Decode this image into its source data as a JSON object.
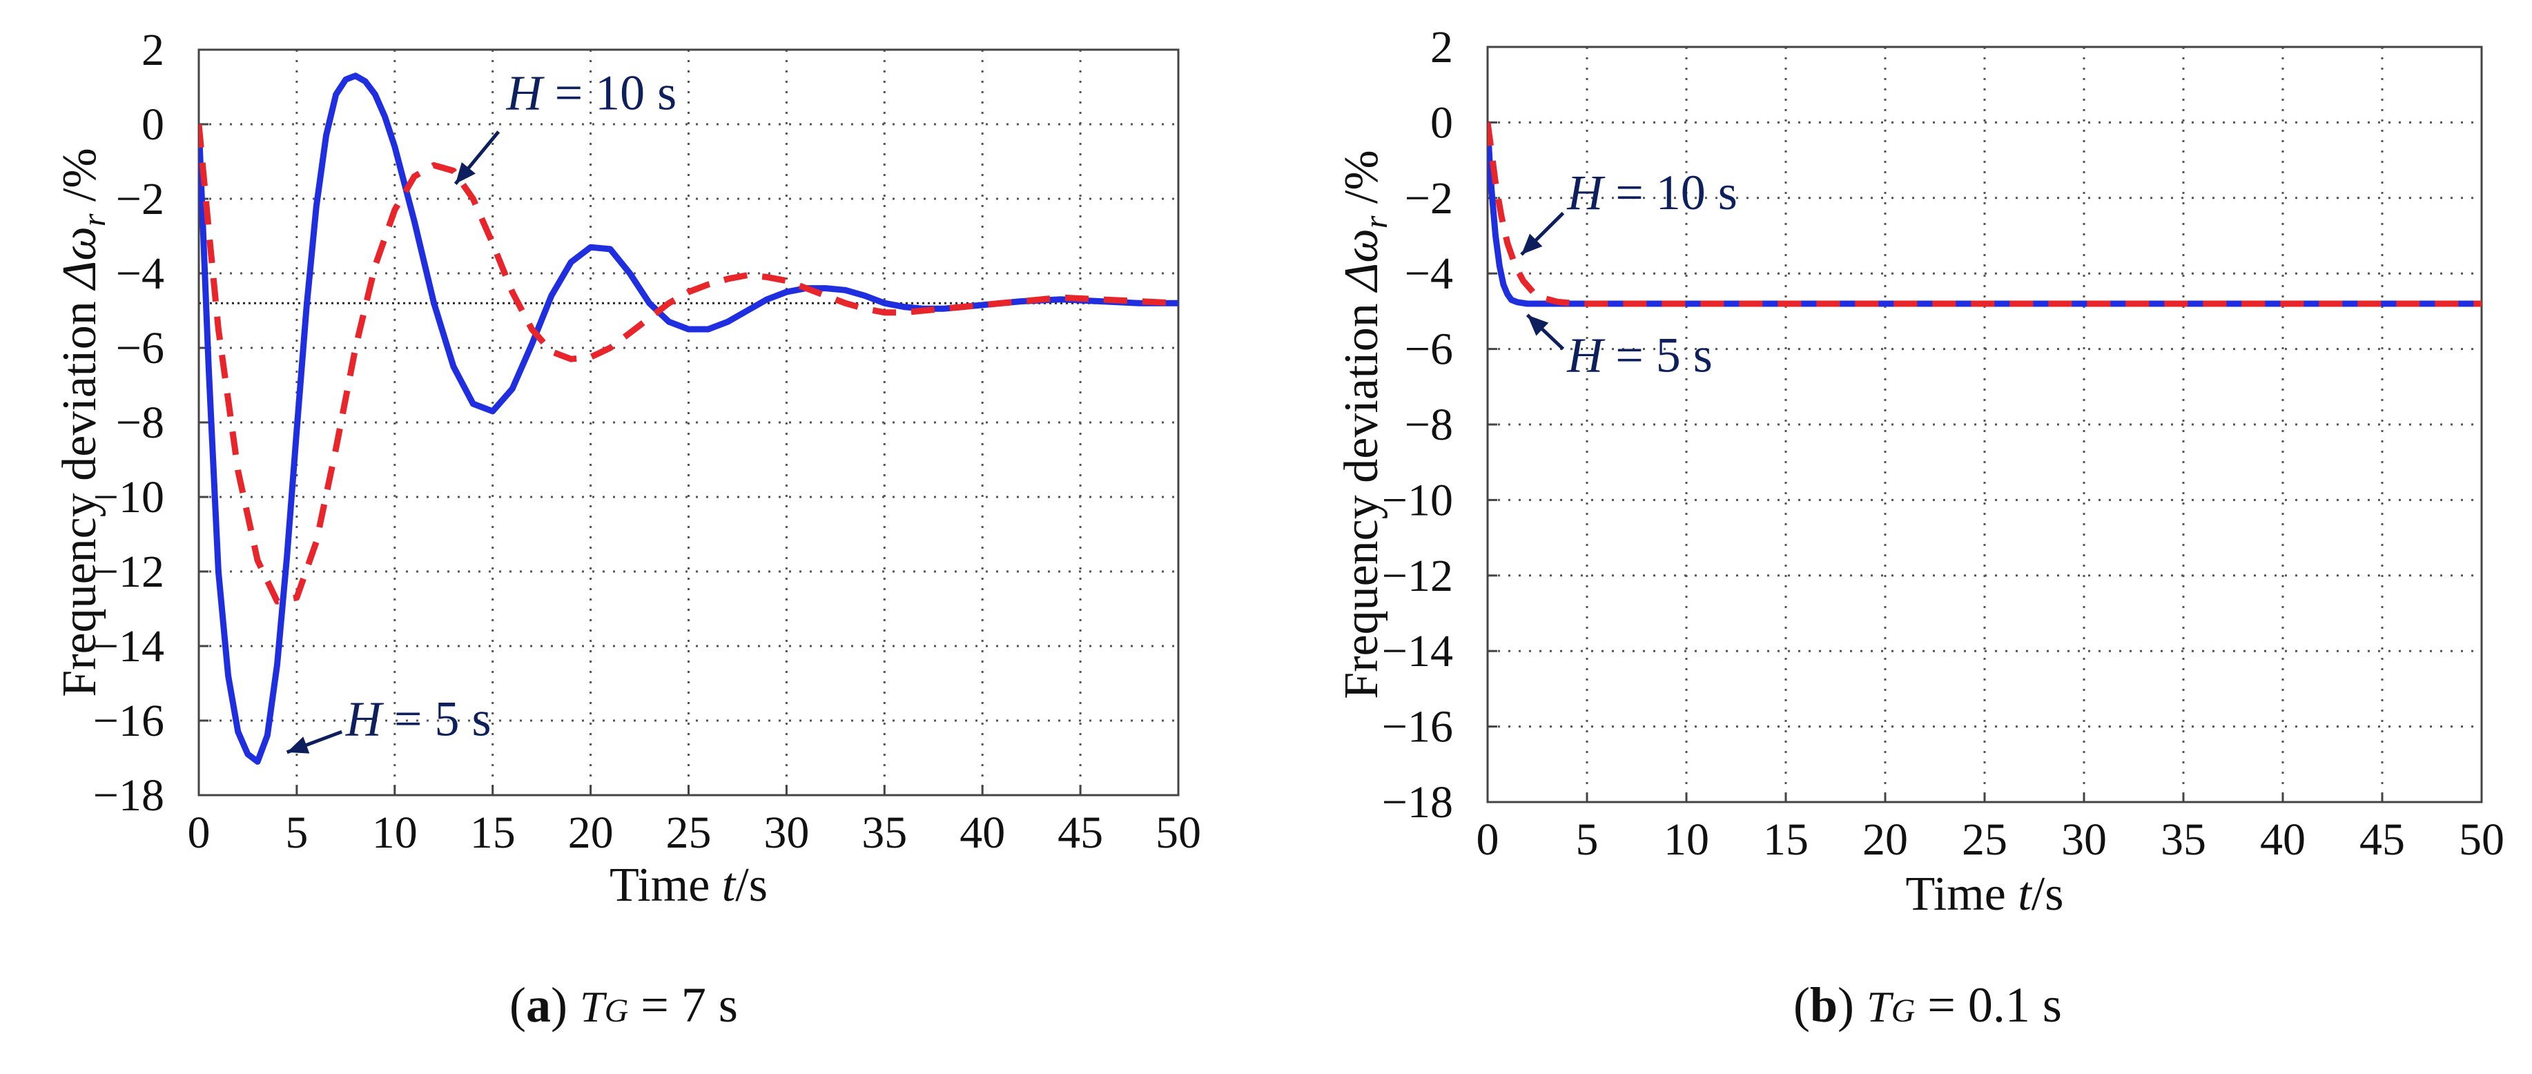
{
  "chart_data": [
    {
      "type": "line",
      "panel_label": "a",
      "caption": {
        "letter": "a",
        "var": "T",
        "sub": "G",
        "text": " = 7 s"
      },
      "xlabel": {
        "pre": "Time ",
        "var": "t",
        "post": "/s"
      },
      "ylabel": {
        "pre": "Frequency deviation ",
        "var": "Δω",
        "sub": "r",
        "post": " /%"
      },
      "xlim": [
        0,
        50
      ],
      "ylim": [
        -18,
        2
      ],
      "xticks": [
        0,
        5,
        10,
        15,
        20,
        25,
        30,
        35,
        40,
        45,
        50
      ],
      "yticks": [
        2,
        0,
        -2,
        -4,
        -6,
        -8,
        -10,
        -12,
        -14,
        -16,
        -18
      ],
      "grid": true,
      "reference_line": -4.8,
      "series": [
        {
          "name": "H = 5 s",
          "color": "#1f2fe0",
          "dash": "solid",
          "x": [
            0,
            0.5,
            1,
            1.5,
            2,
            2.5,
            3,
            3.5,
            4,
            4.5,
            5,
            5.5,
            6,
            6.5,
            7,
            7.5,
            8,
            8.5,
            9,
            9.5,
            10,
            11,
            12,
            13,
            14,
            15,
            16,
            17,
            18,
            19,
            20,
            21,
            22,
            23,
            24,
            25,
            26,
            27,
            28,
            29,
            30,
            31,
            32,
            33,
            34,
            35,
            36,
            37,
            38,
            39,
            40,
            42,
            44,
            46,
            48,
            50
          ],
          "y": [
            0,
            -6.5,
            -12,
            -14.8,
            -16.3,
            -16.9,
            -17.1,
            -16.4,
            -14.5,
            -11.6,
            -8.2,
            -4.9,
            -2.2,
            -0.3,
            0.8,
            1.2,
            1.3,
            1.15,
            0.8,
            0.2,
            -0.6,
            -2.6,
            -4.8,
            -6.5,
            -7.5,
            -7.7,
            -7.1,
            -5.9,
            -4.6,
            -3.7,
            -3.3,
            -3.35,
            -4.0,
            -4.8,
            -5.3,
            -5.5,
            -5.5,
            -5.3,
            -5.0,
            -4.7,
            -4.5,
            -4.4,
            -4.4,
            -4.45,
            -4.6,
            -4.8,
            -4.9,
            -4.95,
            -4.95,
            -4.9,
            -4.85,
            -4.75,
            -4.7,
            -4.75,
            -4.8,
            -4.8
          ]
        },
        {
          "name": "H = 10 s",
          "color": "#e8252a",
          "dash": "dashed",
          "x": [
            0,
            0.5,
            1,
            2,
            3,
            4,
            5,
            6,
            7,
            8,
            9,
            10,
            11,
            12,
            13,
            14,
            15,
            16,
            17,
            18,
            19,
            20,
            21,
            22,
            23,
            24,
            25,
            26,
            27,
            28,
            29,
            30,
            31,
            32,
            33,
            34,
            35,
            36,
            37,
            38,
            39,
            40,
            42,
            44,
            46,
            48,
            50
          ],
          "y": [
            0,
            -2.8,
            -5.5,
            -9.3,
            -11.7,
            -12.8,
            -12.7,
            -11.2,
            -8.7,
            -6.0,
            -3.8,
            -2.3,
            -1.4,
            -1.1,
            -1.25,
            -2.0,
            -3.2,
            -4.5,
            -5.5,
            -6.1,
            -6.3,
            -6.25,
            -6.0,
            -5.6,
            -5.2,
            -4.8,
            -4.5,
            -4.3,
            -4.15,
            -4.05,
            -4.1,
            -4.2,
            -4.4,
            -4.6,
            -4.8,
            -4.95,
            -5.05,
            -5.05,
            -5.0,
            -4.95,
            -4.9,
            -4.85,
            -4.75,
            -4.65,
            -4.7,
            -4.75,
            -4.8
          ]
        }
      ],
      "annotations": [
        {
          "var": "H",
          "text": " = 10 s",
          "x": 15.7,
          "y": 0.4,
          "arrow_from": [
            15.3,
            -0.2
          ],
          "arrow_to": [
            13.1,
            -1.6
          ]
        },
        {
          "var": "H",
          "text": " = 5 s",
          "x": 7.5,
          "y": -16.4,
          "arrow_from": [
            7.3,
            -16.3
          ],
          "arrow_to": [
            4.5,
            -16.85
          ]
        }
      ]
    },
    {
      "type": "line",
      "panel_label": "b",
      "caption": {
        "letter": "b",
        "var": "T",
        "sub": "G",
        "text": " = 0.1 s"
      },
      "xlabel": {
        "pre": "Time ",
        "var": "t",
        "post": "/s"
      },
      "ylabel": {
        "pre": "Frequency deviation ",
        "var": "Δω",
        "sub": "r",
        "post": " /%"
      },
      "xlim": [
        0,
        50
      ],
      "ylim": [
        -18,
        2
      ],
      "xticks": [
        0,
        5,
        10,
        15,
        20,
        25,
        30,
        35,
        40,
        45,
        50
      ],
      "yticks": [
        2,
        0,
        -2,
        -4,
        -6,
        -8,
        -10,
        -12,
        -14,
        -16,
        -18
      ],
      "grid": true,
      "series": [
        {
          "name": "H = 5 s",
          "color": "#1f2fe0",
          "dash": "solid",
          "x": [
            0,
            0.1,
            0.2,
            0.4,
            0.6,
            0.8,
            1.0,
            1.2,
            1.5,
            2,
            3,
            5,
            10,
            20,
            30,
            40,
            50
          ],
          "y": [
            0,
            -1.0,
            -1.8,
            -3.0,
            -3.8,
            -4.3,
            -4.55,
            -4.7,
            -4.76,
            -4.8,
            -4.8,
            -4.8,
            -4.8,
            -4.8,
            -4.8,
            -4.8,
            -4.8
          ]
        },
        {
          "name": "H = 10 s",
          "color": "#e8252a",
          "dash": "dashed",
          "x": [
            0,
            0.2,
            0.4,
            0.7,
            1.0,
            1.4,
            1.8,
            2.3,
            2.8,
            3.5,
            4.5,
            6,
            10,
            20,
            30,
            40,
            50
          ],
          "y": [
            0,
            -0.8,
            -1.6,
            -2.5,
            -3.2,
            -3.8,
            -4.2,
            -4.5,
            -4.65,
            -4.75,
            -4.8,
            -4.8,
            -4.8,
            -4.8,
            -4.8,
            -4.8,
            -4.8
          ]
        }
      ],
      "annotations": [
        {
          "var": "H",
          "text": " = 10 s",
          "x": 4.0,
          "y": -2.3,
          "arrow_from": [
            3.8,
            -2.4
          ],
          "arrow_to": [
            1.7,
            -3.5
          ]
        },
        {
          "var": "H",
          "text": " = 5 s",
          "x": 4.0,
          "y": -6.6,
          "arrow_from": [
            3.8,
            -6.0
          ],
          "arrow_to": [
            2.0,
            -5.1
          ]
        }
      ]
    }
  ]
}
